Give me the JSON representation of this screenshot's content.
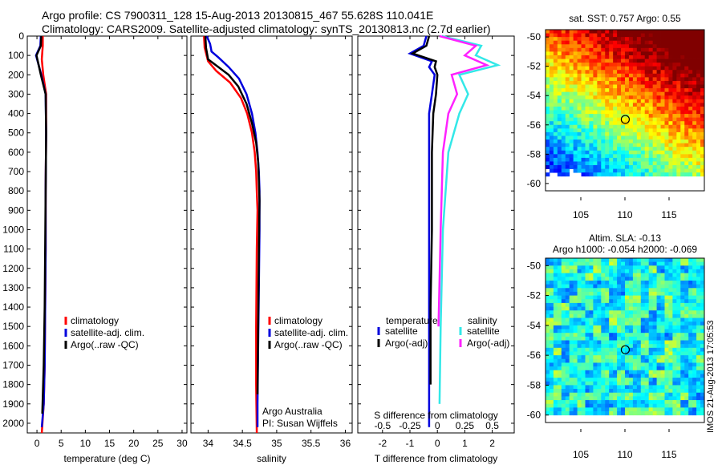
{
  "header": {
    "line1": "Argo profile: CS 7900311_128 15-Aug-2013 20130815_467 55.628S 110.041E",
    "line2": "Climatology: CARS2009. Satellite-adjusted climatology: synTS_20130813.nc (2.7d earlier)"
  },
  "credits": {
    "institution": "Argo Australia",
    "pi": "PI: Susan Wijffels",
    "imos_stamp": "IMOS 21-Aug-2013 17:05:53"
  },
  "colors": {
    "climatology": "#ff0000",
    "satellite": "#0000dd",
    "argo": "#000000",
    "s_satellite": "#33e8e8",
    "s_argo": "#ff22ff"
  },
  "chart_data": [
    {
      "type": "line",
      "xlabel": "temperature (deg C)",
      "xlim": [
        -2,
        31
      ],
      "ylim": [
        2050,
        0
      ],
      "xticks": [
        0,
        5,
        10,
        15,
        20,
        25,
        30
      ],
      "yticks": [
        0,
        100,
        200,
        300,
        400,
        500,
        600,
        700,
        800,
        900,
        1000,
        1100,
        1200,
        1300,
        1400,
        1500,
        1600,
        1700,
        1800,
        1900,
        2000
      ],
      "legend": [
        "climatology",
        "satellite-adj. clim.",
        "Argo(..raw -QC)"
      ],
      "series": [
        {
          "name": "climatology",
          "color": "#ff0000",
          "x": [
            1.2,
            1.2,
            1.0,
            1.3,
            1.9,
            1.9,
            1.8,
            1.8,
            1.7,
            1.6,
            1.4,
            1.0
          ],
          "y": [
            0,
            50,
            120,
            200,
            300,
            500,
            800,
            1100,
            1400,
            1700,
            1900,
            2050
          ]
        },
        {
          "name": "satellite-adj. clim.",
          "color": "#0000dd",
          "x": [
            0.8,
            0.7,
            -0.2,
            0.9,
            1.8,
            1.9,
            1.8,
            1.8,
            1.7,
            1.6,
            1.4,
            1.0
          ],
          "y": [
            0,
            50,
            100,
            200,
            300,
            500,
            800,
            1100,
            1400,
            1700,
            1900,
            2020
          ]
        },
        {
          "name": "Argo(..raw -QC)",
          "color": "#000000",
          "x": [
            0.9,
            0.8,
            -0.1,
            0.8,
            1.8,
            1.9,
            1.8,
            1.7,
            1.6,
            1.4,
            1.1
          ],
          "y": [
            0,
            50,
            100,
            200,
            300,
            500,
            800,
            1100,
            1400,
            1700,
            1950
          ]
        }
      ]
    },
    {
      "type": "line",
      "xlabel": "salinity",
      "xlim": [
        33.75,
        36.1
      ],
      "ylim": [
        2050,
        0
      ],
      "xticks": [
        34,
        34.5,
        35,
        35.5,
        36
      ],
      "legend": [
        "climatology",
        "satellite-adj. clim.",
        "Argo(..raw -QC)"
      ],
      "series": [
        {
          "name": "climatology",
          "color": "#ff0000",
          "x": [
            33.94,
            33.95,
            34.0,
            34.12,
            34.32,
            34.48,
            34.57,
            34.64,
            34.68,
            34.7,
            34.71,
            34.72,
            34.71,
            34.7,
            34.7,
            34.71
          ],
          "y": [
            0,
            60,
            130,
            180,
            240,
            320,
            400,
            500,
            600,
            700,
            800,
            900,
            1100,
            1500,
            1800,
            2050
          ]
        },
        {
          "name": "satellite-adj. clim.",
          "color": "#0000dd",
          "x": [
            33.98,
            34.03,
            34.05,
            34.15,
            34.3,
            34.45,
            34.56,
            34.64,
            34.69,
            34.72,
            34.74,
            34.75,
            34.75,
            34.74,
            34.73,
            34.72,
            34.72
          ],
          "y": [
            0,
            40,
            80,
            110,
            160,
            220,
            300,
            400,
            500,
            600,
            700,
            800,
            1000,
            1300,
            1600,
            1900,
            2020
          ]
        },
        {
          "name": "Argo(..raw -QC)",
          "color": "#000000",
          "x": [
            33.96,
            33.97,
            34.0,
            34.15,
            34.3,
            34.44,
            34.56,
            34.64,
            34.7,
            34.73,
            34.74,
            34.75,
            34.74,
            34.73,
            34.72
          ],
          "y": [
            0,
            60,
            120,
            160,
            200,
            260,
            350,
            450,
            550,
            650,
            750,
            850,
            1100,
            1500,
            1850
          ]
        }
      ]
    },
    {
      "type": "line",
      "xlabel": "T difference from climatology",
      "xlabel_top": "S difference from climatology",
      "xlim": [
        -2.9,
        2.8
      ],
      "ylim": [
        2050,
        0
      ],
      "xticks": [
        -2,
        -1,
        0,
        1,
        2
      ],
      "xticks_top": [
        -0.5,
        -0.25,
        0,
        0.25,
        0.5
      ],
      "legend_groups": [
        "temperature",
        "salinity"
      ],
      "legend": [
        "satellite",
        "Argo(-adj)",
        "satellite",
        "Argo(-adj)"
      ],
      "series": [
        {
          "name": "satellite",
          "group": "temperature",
          "color": "#0000dd",
          "x": [
            -0.4,
            -0.5,
            -1.0,
            -0.2,
            -0.3,
            -0.1,
            -0.2,
            -0.3,
            -0.3,
            -0.3,
            -0.3,
            -0.3,
            -0.3
          ],
          "y": [
            0,
            50,
            90,
            130,
            160,
            200,
            300,
            400,
            600,
            1000,
            1400,
            1800,
            2020
          ]
        },
        {
          "name": "Argo(-adj)",
          "group": "temperature",
          "color": "#000000",
          "x": [
            -0.3,
            -0.4,
            -0.9,
            -0.05,
            -0.1,
            0.0,
            -0.05,
            -0.15,
            -0.2,
            -0.2,
            -0.25,
            -0.25
          ],
          "y": [
            0,
            50,
            90,
            130,
            160,
            200,
            300,
            400,
            600,
            1000,
            1400,
            1800
          ]
        },
        {
          "name": "satellite",
          "group": "salinity",
          "color": "#33e8e8",
          "x": [
            0.04,
            0.4,
            0.35,
            0.55,
            0.2,
            0.28,
            0.2,
            0.1,
            0.05,
            0.03,
            0.02
          ],
          "y": [
            0,
            50,
            100,
            150,
            200,
            300,
            400,
            600,
            1000,
            1500,
            1900
          ]
        },
        {
          "name": "Argo(-adj)",
          "group": "salinity",
          "color": "#ff22ff",
          "x": [
            0.02,
            0.35,
            0.25,
            0.45,
            0.13,
            0.18,
            0.1,
            0.05,
            0.03,
            0.01
          ],
          "y": [
            0,
            50,
            100,
            150,
            200,
            300,
            400,
            600,
            1000,
            1500
          ]
        }
      ]
    },
    {
      "type": "heatmap",
      "title": "sat. SST: 0.757 Argo: 0.55",
      "xlim": [
        101,
        119
      ],
      "ylim": [
        -60.5,
        -49.5
      ],
      "xticks": [
        105,
        110,
        115
      ],
      "yticks": [
        -50,
        -52,
        -54,
        -56,
        -58,
        -60
      ],
      "marker": {
        "lon": 110.041,
        "lat": -55.628
      }
    },
    {
      "type": "heatmap",
      "title": "Altim. SLA: -0.13",
      "subtitle": "Argo h1000: -0.054 h2000: -0.069",
      "xlim": [
        101,
        119
      ],
      "ylim": [
        -60.5,
        -49.5
      ],
      "xticks": [
        105,
        110,
        115
      ],
      "yticks": [
        -50,
        -52,
        -54,
        -56,
        -58,
        -60
      ],
      "marker": {
        "lon": 110.041,
        "lat": -55.628
      }
    }
  ]
}
